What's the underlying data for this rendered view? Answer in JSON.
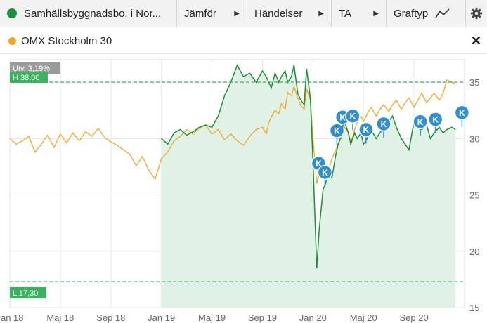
{
  "toolbar": {
    "instrument": "Samhällsbyggnadsbo. i Nor...",
    "compare": "Jämför",
    "events": "Händelser",
    "ta": "TA",
    "graph_type": "Graftyp"
  },
  "legend": {
    "label": "OMX Stockholm 30"
  },
  "colors": {
    "primary": "#1e8f3a",
    "primary_fill": "#dff2e5",
    "compare": "#f5a623",
    "marker": "#2f8fd0",
    "high_low": "#3bb25e"
  },
  "chart_data": {
    "type": "line",
    "x_ticks": [
      "Jan 18",
      "Maj 18",
      "Sep 18",
      "Jan 19",
      "Maj 19",
      "Sep 19",
      "Jan 20",
      "Maj 20",
      "Sep 20"
    ],
    "y_ticks": [
      "15",
      "20",
      "25",
      "30",
      "35"
    ],
    "ylim": [
      15,
      37
    ],
    "utv_label": "Utv. 3,19%",
    "high_label": "H 38,00",
    "low_label": "L 17,30",
    "high_value": 38.0,
    "low_value": 17.3,
    "series": [
      {
        "name": "Samhällsbyggnadsbo. i Nor...",
        "x": [
          12.0,
          12.5,
          13.0,
          13.5,
          14.0,
          14.5,
          15.0,
          15.5,
          16.0,
          16.5,
          17.0,
          17.5,
          18.0,
          18.5,
          19.0,
          19.5,
          20.0,
          20.3,
          20.5,
          20.7,
          21.0,
          21.3,
          21.5,
          21.8,
          22.0,
          22.3,
          22.5,
          22.8,
          23.0,
          23.3,
          23.5,
          23.8,
          24.0,
          24.3,
          24.5,
          24.8,
          25.0,
          25.3,
          25.5,
          25.8,
          26.0,
          26.3,
          26.5,
          26.8,
          27.0,
          27.3,
          27.5,
          27.8,
          28.0,
          28.3,
          28.6,
          29.0,
          29.3,
          29.6,
          30.0,
          30.3,
          30.6,
          31.0,
          31.3,
          31.6,
          32.0,
          32.3,
          32.6,
          33.0,
          33.3,
          33.6,
          34.0,
          34.3,
          34.6,
          35.0,
          35.3
        ],
        "values": [
          30.0,
          29.5,
          30.5,
          30.8,
          30.3,
          30.6,
          31.0,
          31.2,
          31.0,
          32.0,
          33.8,
          35.0,
          36.5,
          35.5,
          35.8,
          35.0,
          36.0,
          35.5,
          35.0,
          34.5,
          35.8,
          35.0,
          35.5,
          36.0,
          35.0,
          35.5,
          36.5,
          34.0,
          33.5,
          33.0,
          36.2,
          33.5,
          28.0,
          18.5,
          22.0,
          25.5,
          26.0,
          27.5,
          26.5,
          28.5,
          29.5,
          30.5,
          31.5,
          30.5,
          29.5,
          30.5,
          30.0,
          30.5,
          29.5,
          30.0,
          30.8,
          30.0,
          30.5,
          31.0,
          31.5,
          32.0,
          31.0,
          30.0,
          29.5,
          29.0,
          31.5,
          31.0,
          30.8,
          31.2,
          30.0,
          30.5,
          31.0,
          30.5,
          30.8,
          31.0,
          30.8
        ]
      },
      {
        "name": "OMX Stockholm 30",
        "x": [
          0.0,
          0.5,
          1.0,
          1.5,
          2.0,
          2.5,
          3.0,
          3.5,
          4.0,
          4.5,
          5.0,
          5.5,
          6.0,
          6.5,
          7.0,
          7.5,
          8.0,
          8.5,
          9.0,
          9.5,
          10.0,
          10.5,
          11.0,
          11.5,
          12.0,
          12.5,
          13.0,
          13.5,
          14.0,
          14.5,
          15.0,
          15.5,
          16.0,
          16.5,
          17.0,
          17.5,
          18.0,
          18.5,
          19.0,
          19.5,
          20.0,
          20.3,
          20.5,
          20.7,
          21.0,
          21.3,
          21.5,
          21.8,
          22.0,
          22.3,
          22.5,
          22.8,
          23.0,
          23.3,
          23.5,
          23.8,
          24.0,
          24.3,
          24.5,
          24.8,
          25.0,
          25.3,
          25.5,
          25.8,
          26.0,
          26.3,
          26.5,
          26.8,
          27.0,
          27.3,
          27.5,
          27.8,
          28.0,
          28.3,
          28.6,
          29.0,
          29.3,
          29.6,
          30.0,
          30.3,
          30.6,
          31.0,
          31.3,
          31.6,
          32.0,
          32.3,
          32.6,
          33.0,
          33.3,
          33.6,
          34.0,
          34.3,
          34.6,
          35.0,
          35.3
        ],
        "values": [
          30.0,
          29.5,
          29.8,
          30.2,
          28.8,
          29.5,
          30.3,
          29.2,
          30.4,
          29.6,
          30.5,
          29.8,
          30.6,
          30.2,
          30.9,
          30.1,
          29.7,
          29.4,
          29.0,
          28.6,
          27.6,
          28.4,
          27.2,
          26.4,
          28.2,
          28.8,
          29.8,
          30.2,
          30.8,
          30.4,
          30.9,
          31.2,
          30.4,
          30.8,
          29.9,
          30.4,
          29.8,
          29.4,
          30.2,
          30.8,
          31.0,
          30.4,
          31.4,
          31.9,
          32.5,
          32.2,
          33.1,
          32.6,
          34.1,
          33.8,
          34.6,
          33.6,
          33.0,
          32.6,
          34.4,
          33.4,
          30.0,
          26.0,
          27.2,
          27.8,
          26.8,
          27.5,
          28.2,
          29.0,
          29.5,
          30.2,
          31.0,
          30.6,
          29.6,
          30.8,
          31.4,
          32.0,
          31.5,
          32.2,
          32.8,
          32.0,
          32.6,
          33.0,
          32.4,
          33.0,
          33.4,
          32.6,
          33.2,
          33.6,
          32.8,
          33.4,
          34.0,
          33.2,
          33.6,
          34.0,
          33.4,
          34.0,
          35.2,
          35.0,
          34.8
        ]
      }
    ],
    "events": [
      {
        "label": "K",
        "x": 24.45,
        "value": 27.8
      },
      {
        "label": "K",
        "x": 24.95,
        "value": 27.0
      },
      {
        "label": "K",
        "x": 25.9,
        "value": 30.7
      },
      {
        "label": "K",
        "x": 26.35,
        "value": 31.9
      },
      {
        "label": "K",
        "x": 27.15,
        "value": 32.0
      },
      {
        "label": "K",
        "x": 28.2,
        "value": 30.8
      },
      {
        "label": "K",
        "x": 29.6,
        "value": 31.3
      },
      {
        "label": "K",
        "x": 32.5,
        "value": 31.5
      },
      {
        "label": "K",
        "x": 33.7,
        "value": 31.7
      },
      {
        "label": "K",
        "x": 35.8,
        "value": 32.3
      }
    ]
  }
}
